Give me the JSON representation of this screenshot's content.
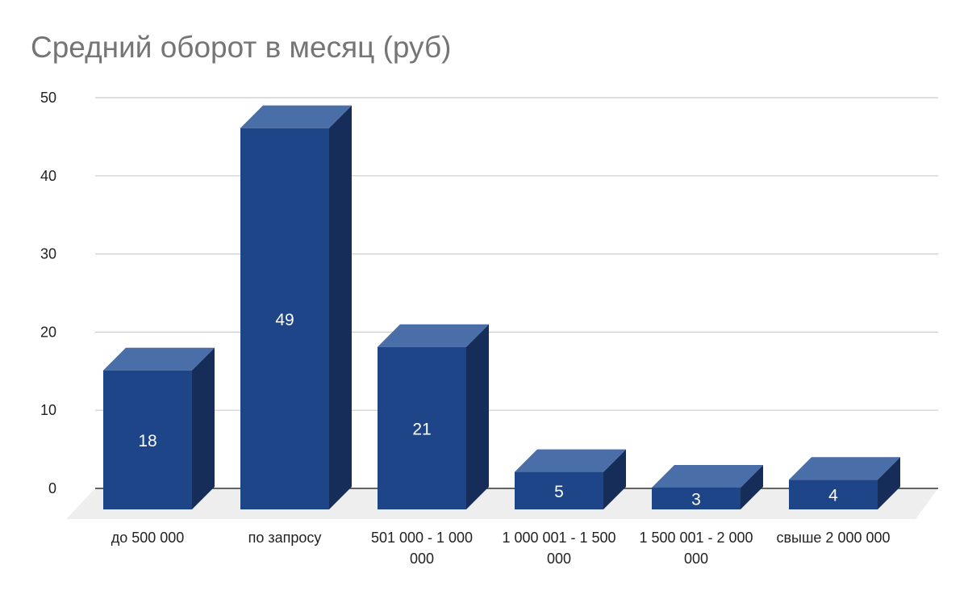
{
  "chart_data": {
    "type": "bar",
    "title": "Средний оборот в месяц (руб)",
    "categories": [
      [
        "до 500 000"
      ],
      [
        "по запросу"
      ],
      [
        "501 000 - 1 000",
        "000"
      ],
      [
        "1 000 001 - 1 500",
        "000"
      ],
      [
        "1 500 001 - 2 000",
        "000"
      ],
      [
        "свыше 2 000 000"
      ]
    ],
    "values": [
      18,
      49,
      21,
      5,
      3,
      4
    ],
    "data_labels": [
      "18",
      "49",
      "21",
      "5",
      "3",
      "4"
    ],
    "y_ticks": [
      "0",
      "10",
      "20",
      "30",
      "40",
      "50"
    ],
    "ylim": [
      0,
      50
    ],
    "xlabel": "",
    "ylabel": "",
    "grid": true,
    "legend": "none",
    "style": "3d",
    "colors": {
      "bar_front": "#1f4589",
      "bar_top": "#4a6ea8",
      "bar_side": "#162d5a",
      "floor": "#eeeeee",
      "grid": "#cccccc",
      "axis": "#333333"
    }
  }
}
